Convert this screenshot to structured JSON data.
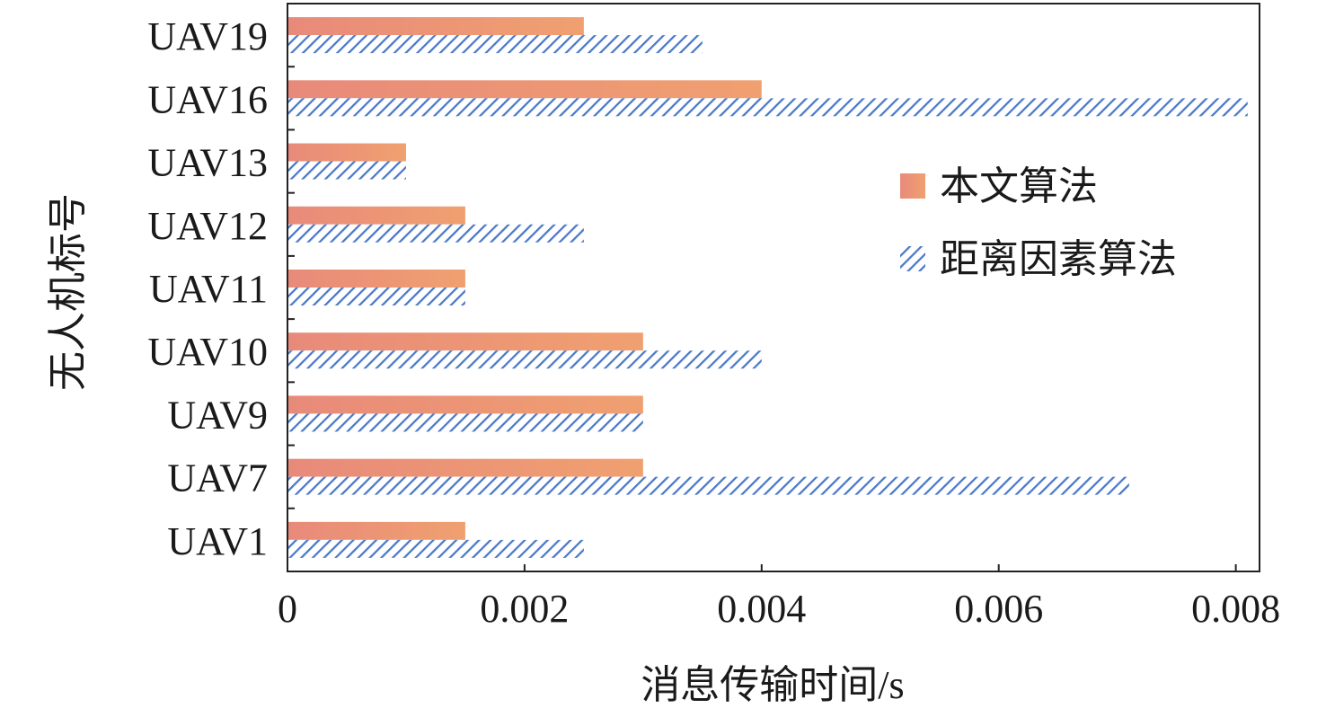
{
  "chart_data": {
    "type": "bar",
    "orientation": "horizontal",
    "categories": [
      "UAV1",
      "UAV7",
      "UAV9",
      "UAV10",
      "UAV11",
      "UAV12",
      "UAV13",
      "UAV16",
      "UAV19"
    ],
    "series": [
      {
        "name": "本文算法",
        "pattern": "solid",
        "values": [
          0.0015,
          0.003,
          0.003,
          0.003,
          0.0015,
          0.0015,
          0.001,
          0.004,
          0.0025
        ]
      },
      {
        "name": "距离因素算法",
        "pattern": "hatched",
        "values": [
          0.0025,
          0.0071,
          0.003,
          0.004,
          0.0015,
          0.0025,
          0.001,
          0.0081,
          0.0035
        ]
      }
    ],
    "xlabel": "消息传输时间/s",
    "ylabel": "无人机标号",
    "xlim": [
      0,
      0.0082
    ],
    "x_ticks": [
      "0",
      "0.002",
      "0.004",
      "0.006",
      "0.008"
    ],
    "x_tick_values": [
      0,
      0.002,
      0.004,
      0.006,
      0.008
    ],
    "grid": false,
    "legend_position": "right"
  },
  "colors": {
    "solid_bar_start": "#e88a7a",
    "solid_bar_end": "#f0a070",
    "hatch_line_a": "#4a78c8",
    "hatch_line_b": "#7a7a9a",
    "axis": "#222222"
  }
}
